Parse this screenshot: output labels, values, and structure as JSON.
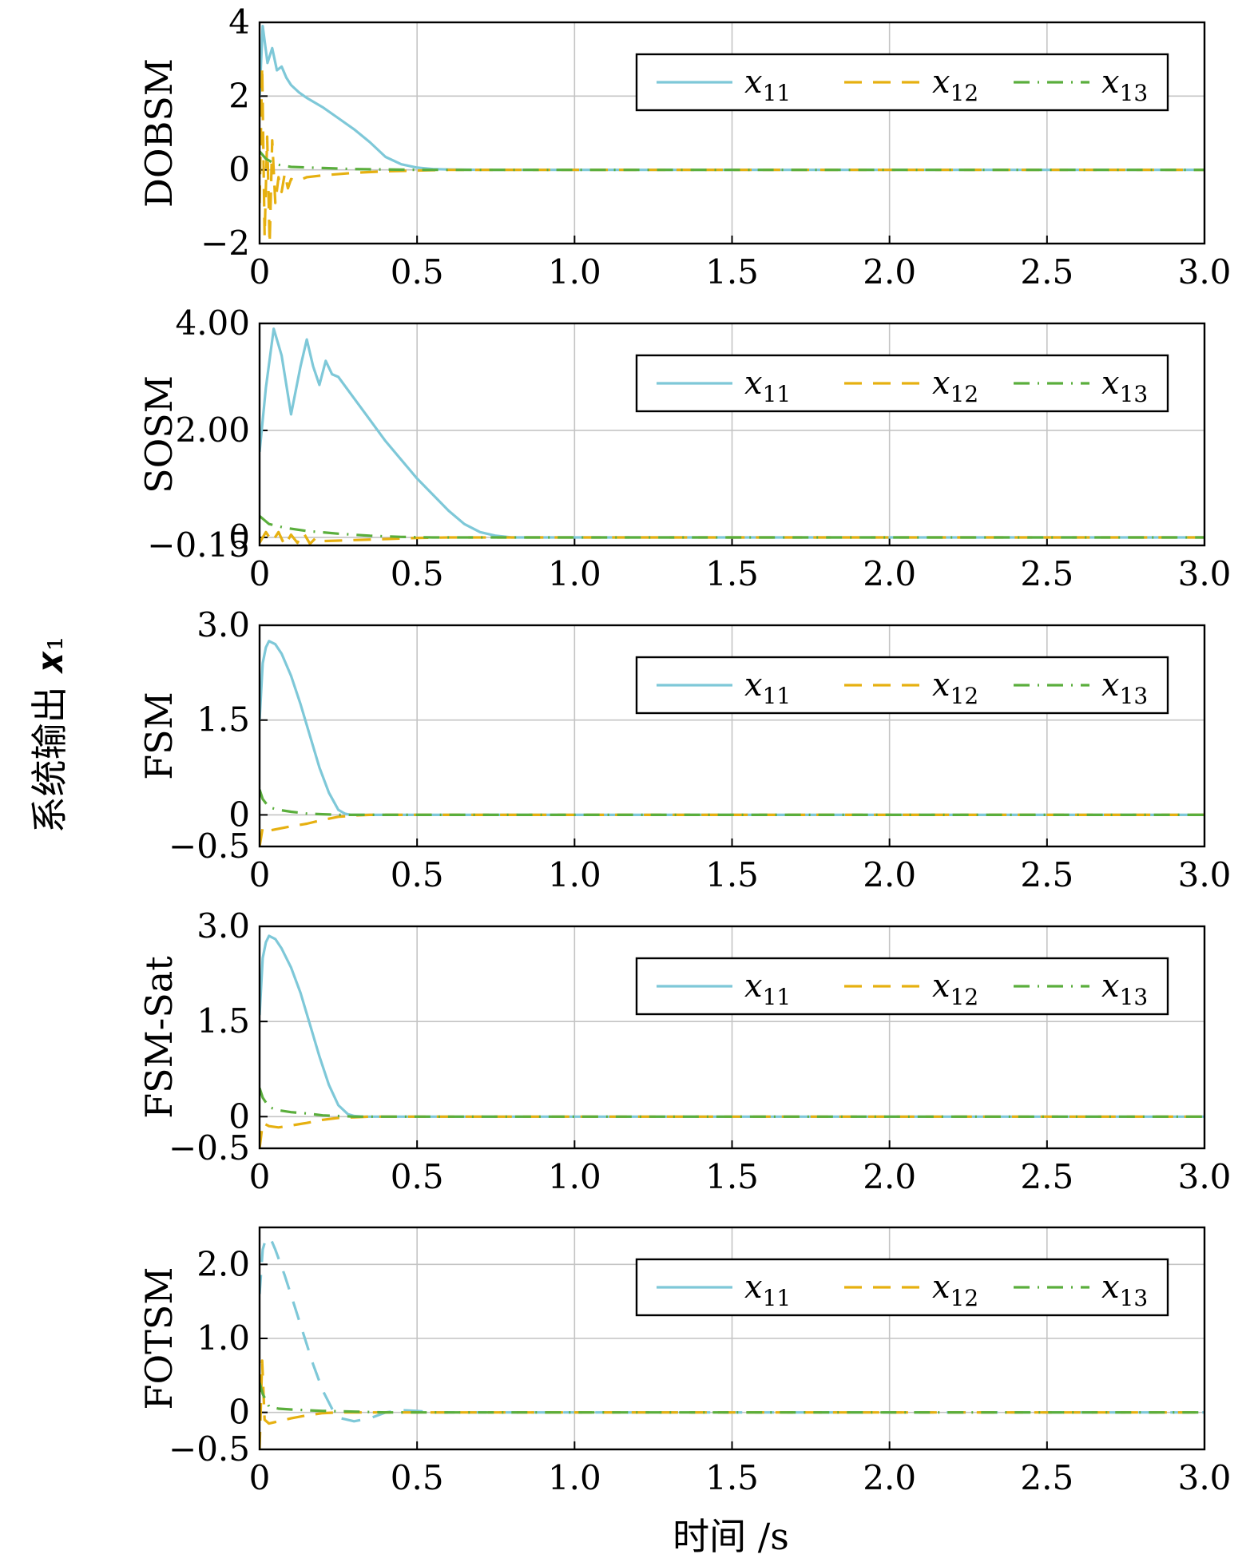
{
  "figure": {
    "shared_ylabel": "系统输出 𝒙₁",
    "shared_xlabel": "时间 /s",
    "colors": {
      "x11": "#7ec8d8",
      "x12": "#e6b010",
      "x13": "#5aae3c"
    }
  },
  "chart_data": [
    {
      "type": "line",
      "ylabel": "DOBSM",
      "xlim": [
        0,
        3.0
      ],
      "ylim": [
        -2,
        4
      ],
      "xticks": [
        "0",
        "0.5",
        "1.0",
        "1.5",
        "2.0",
        "2.5",
        "3.0"
      ],
      "yticks": [
        "−2",
        "0",
        "2",
        "4"
      ],
      "ytick_values": [
        -2,
        0,
        2,
        4
      ],
      "legend": [
        "x11",
        "x12",
        "x13"
      ],
      "series": [
        {
          "name": "x11",
          "x": [
            0,
            0.01,
            0.025,
            0.04,
            0.055,
            0.07,
            0.085,
            0.1,
            0.125,
            0.15,
            0.2,
            0.25,
            0.3,
            0.35,
            0.4,
            0.45,
            0.5,
            0.55,
            0.6,
            0.7,
            0.8,
            1.0,
            3.0
          ],
          "y": [
            2.0,
            3.9,
            2.9,
            3.3,
            2.7,
            2.8,
            2.5,
            2.3,
            2.1,
            1.95,
            1.7,
            1.4,
            1.1,
            0.75,
            0.35,
            0.15,
            0.06,
            0.02,
            0.01,
            0,
            0,
            0,
            0
          ]
        },
        {
          "name": "x12",
          "x": [
            0,
            0.008,
            0.016,
            0.024,
            0.032,
            0.04,
            0.05,
            0.06,
            0.07,
            0.08,
            0.09,
            0.1,
            0.12,
            0.15,
            0.2,
            0.3,
            0.4,
            0.5,
            0.6,
            3.0
          ],
          "y": [
            -0.9,
            2.8,
            -1.8,
            0.9,
            -2.0,
            0.8,
            -0.9,
            -0.2,
            -0.6,
            -0.1,
            -0.5,
            -0.25,
            -0.3,
            -0.2,
            -0.15,
            -0.08,
            -0.04,
            -0.02,
            0,
            0
          ]
        },
        {
          "name": "x13",
          "x": [
            0,
            0.02,
            0.05,
            0.1,
            0.2,
            0.3,
            0.4,
            0.5,
            3.0
          ],
          "y": [
            0.5,
            0.3,
            0.15,
            0.08,
            0.05,
            0.02,
            0.01,
            0,
            0
          ]
        }
      ]
    },
    {
      "type": "line",
      "ylabel": "SOSM",
      "xlim": [
        0,
        3.0
      ],
      "ylim": [
        -0.15,
        4.0
      ],
      "xticks": [
        "0",
        "0.5",
        "1.0",
        "1.5",
        "2.0",
        "2.5",
        "3.0"
      ],
      "yticks": [
        "−0.15",
        "0",
        "2.00",
        "4.00"
      ],
      "ytick_values": [
        -0.15,
        0,
        2.0,
        4.0
      ],
      "legend": [
        "x11",
        "x12",
        "x13"
      ],
      "series": [
        {
          "name": "x11",
          "x": [
            0,
            0.02,
            0.045,
            0.07,
            0.1,
            0.13,
            0.15,
            0.17,
            0.19,
            0.21,
            0.23,
            0.25,
            0.3,
            0.35,
            0.4,
            0.45,
            0.5,
            0.55,
            0.6,
            0.65,
            0.7,
            0.75,
            0.8,
            3.0
          ],
          "y": [
            1.6,
            2.8,
            3.9,
            3.4,
            2.3,
            3.2,
            3.7,
            3.2,
            2.85,
            3.3,
            3.05,
            3.0,
            2.6,
            2.2,
            1.8,
            1.45,
            1.1,
            0.8,
            0.5,
            0.25,
            0.1,
            0.03,
            0,
            0
          ]
        },
        {
          "name": "x12",
          "x": [
            0,
            0.02,
            0.04,
            0.06,
            0.08,
            0.1,
            0.12,
            0.14,
            0.16,
            0.18,
            0.2,
            0.25,
            0.3,
            0.4,
            0.5,
            0.6,
            0.7,
            3.0
          ],
          "y": [
            -0.1,
            0.1,
            -0.08,
            0.1,
            -0.15,
            0.05,
            -0.1,
            0.08,
            -0.12,
            0.0,
            -0.07,
            -0.06,
            -0.05,
            -0.03,
            -0.01,
            0,
            0,
            0
          ]
        },
        {
          "name": "x13",
          "x": [
            0,
            0.03,
            0.08,
            0.15,
            0.25,
            0.35,
            0.45,
            0.55,
            3.0
          ],
          "y": [
            0.4,
            0.25,
            0.18,
            0.12,
            0.07,
            0.03,
            0.01,
            0,
            0
          ]
        }
      ]
    },
    {
      "type": "line",
      "ylabel": "FSM",
      "xlim": [
        0,
        3.0
      ],
      "ylim": [
        -0.5,
        3.0
      ],
      "xticks": [
        "0",
        "0.5",
        "1.0",
        "1.5",
        "2.0",
        "2.5",
        "3.0"
      ],
      "yticks": [
        "−0.5",
        "0",
        "1.5",
        "3.0"
      ],
      "ytick_values": [
        -0.5,
        0,
        1.5,
        3.0
      ],
      "legend": [
        "x11",
        "x12",
        "x13"
      ],
      "series": [
        {
          "name": "x11",
          "x": [
            0,
            0.01,
            0.02,
            0.03,
            0.05,
            0.07,
            0.1,
            0.13,
            0.16,
            0.19,
            0.22,
            0.25,
            0.27,
            0.29,
            0.32,
            0.35,
            3.0
          ],
          "y": [
            1.5,
            2.4,
            2.65,
            2.75,
            2.7,
            2.55,
            2.2,
            1.75,
            1.25,
            0.75,
            0.35,
            0.08,
            0.02,
            0,
            0,
            0,
            0
          ]
        },
        {
          "name": "x12",
          "x": [
            0,
            0.01,
            0.03,
            0.06,
            0.1,
            0.15,
            0.2,
            0.25,
            0.3,
            0.35,
            3.0
          ],
          "y": [
            -0.5,
            -0.2,
            -0.25,
            -0.22,
            -0.18,
            -0.14,
            -0.08,
            -0.03,
            -0.01,
            0,
            0
          ]
        },
        {
          "name": "x13",
          "x": [
            0,
            0.01,
            0.03,
            0.06,
            0.1,
            0.15,
            0.2,
            0.25,
            0.3,
            3.0
          ],
          "y": [
            0.4,
            0.25,
            0.12,
            0.08,
            0.05,
            0.02,
            0.01,
            0,
            0,
            0
          ]
        }
      ]
    },
    {
      "type": "line",
      "ylabel": "FSM-Sat",
      "xlim": [
        0,
        3.0
      ],
      "ylim": [
        -0.5,
        3.0
      ],
      "xticks": [
        "0",
        "0.5",
        "1.0",
        "1.5",
        "2.0",
        "2.5",
        "3.0"
      ],
      "yticks": [
        "−0.5",
        "0",
        "1.5",
        "3.0"
      ],
      "ytick_values": [
        -0.5,
        0,
        1.5,
        3.0
      ],
      "legend": [
        "x11",
        "x12",
        "x13"
      ],
      "series": [
        {
          "name": "x11",
          "x": [
            0,
            0.01,
            0.02,
            0.03,
            0.05,
            0.07,
            0.1,
            0.13,
            0.16,
            0.19,
            0.22,
            0.25,
            0.28,
            0.3,
            0.33,
            0.36,
            3.0
          ],
          "y": [
            1.6,
            2.5,
            2.75,
            2.85,
            2.8,
            2.65,
            2.35,
            1.95,
            1.45,
            0.95,
            0.5,
            0.18,
            0.04,
            0.01,
            0,
            0,
            0
          ]
        },
        {
          "name": "x12",
          "x": [
            0,
            0.01,
            0.03,
            0.06,
            0.1,
            0.15,
            0.2,
            0.25,
            0.3,
            0.35,
            3.0
          ],
          "y": [
            -0.5,
            -0.1,
            -0.15,
            -0.17,
            -0.14,
            -0.1,
            -0.05,
            -0.02,
            -0.01,
            0,
            0
          ]
        },
        {
          "name": "x13",
          "x": [
            0,
            0.01,
            0.03,
            0.06,
            0.1,
            0.15,
            0.2,
            0.25,
            0.3,
            3.0
          ],
          "y": [
            0.45,
            0.3,
            0.15,
            0.1,
            0.07,
            0.05,
            0.02,
            0.01,
            0,
            0
          ]
        }
      ]
    },
    {
      "type": "line",
      "ylabel": "FOTSM",
      "xlim": [
        0,
        3.0
      ],
      "ylim": [
        -0.5,
        2.5
      ],
      "xticks": [
        "0",
        "0.5",
        "1.0",
        "1.5",
        "2.0",
        "2.5",
        "3.0"
      ],
      "yticks": [
        "−0.5",
        "0",
        "1.0",
        "2.0"
      ],
      "ytick_values": [
        -0.5,
        0,
        1.0,
        2.0
      ],
      "legend": [
        "x11",
        "x12",
        "x13"
      ],
      "series": [
        {
          "name": "x11",
          "x": [
            0,
            0.01,
            0.02,
            0.035,
            0.05,
            0.08,
            0.11,
            0.14,
            0.17,
            0.2,
            0.23,
            0.26,
            0.3,
            0.35,
            0.4,
            0.45,
            0.5,
            0.55,
            3.0
          ],
          "y": [
            1.6,
            2.2,
            2.35,
            2.35,
            2.2,
            1.85,
            1.45,
            1.05,
            0.65,
            0.3,
            0.05,
            -0.08,
            -0.12,
            -0.08,
            0.0,
            0.03,
            0.02,
            0,
            0
          ]
        },
        {
          "name": "x12",
          "x": [
            0,
            0.008,
            0.016,
            0.03,
            0.06,
            0.1,
            0.15,
            0.2,
            0.25,
            0.3,
            0.35,
            3.0
          ],
          "y": [
            -0.5,
            0.7,
            -0.1,
            -0.15,
            -0.12,
            -0.08,
            -0.04,
            -0.01,
            0.0,
            0,
            0,
            0
          ]
        },
        {
          "name": "x13",
          "x": [
            0,
            0.01,
            0.03,
            0.06,
            0.1,
            0.15,
            0.2,
            0.3,
            0.4,
            3.0
          ],
          "y": [
            0.4,
            0.25,
            0.08,
            0.05,
            0.04,
            0.03,
            0.02,
            0.01,
            0,
            0
          ]
        }
      ]
    }
  ]
}
